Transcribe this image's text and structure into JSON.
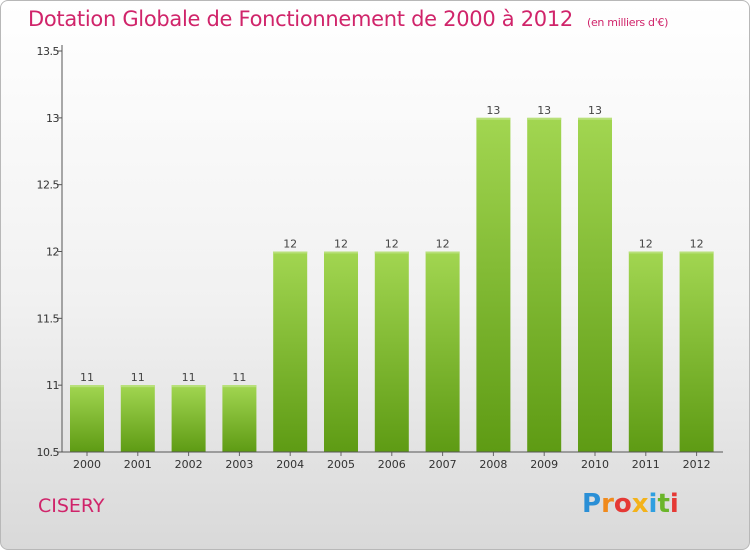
{
  "header": {
    "title": "Dotation Globale de Fonctionnement de 2000 à 2012",
    "unit": "(en milliers d'€)"
  },
  "footer": {
    "commune": "CISERY",
    "brand": "Proxiti"
  },
  "colors": {
    "bar_top": "#a2d651",
    "bar_bottom": "#5e9b14",
    "title": "#d0246a"
  },
  "chart_data": {
    "type": "bar",
    "categories": [
      "2000",
      "2001",
      "2002",
      "2003",
      "2004",
      "2005",
      "2006",
      "2007",
      "2008",
      "2009",
      "2010",
      "2011",
      "2012"
    ],
    "values": [
      11,
      11,
      11,
      11,
      12,
      12,
      12,
      12,
      13,
      13,
      13,
      12,
      12
    ],
    "data_labels": [
      "11",
      "11",
      "11",
      "11",
      "12",
      "12",
      "12",
      "12",
      "13",
      "13",
      "13",
      "12",
      "12"
    ],
    "ylim": [
      10.5,
      13.5
    ],
    "yticks": [
      10.5,
      11,
      11.5,
      12,
      12.5,
      13,
      13.5
    ],
    "ytick_labels": [
      "10.5",
      "11",
      "11.5",
      "12",
      "12.5",
      "13",
      "13.5"
    ],
    "grid": false,
    "legend": "none"
  }
}
